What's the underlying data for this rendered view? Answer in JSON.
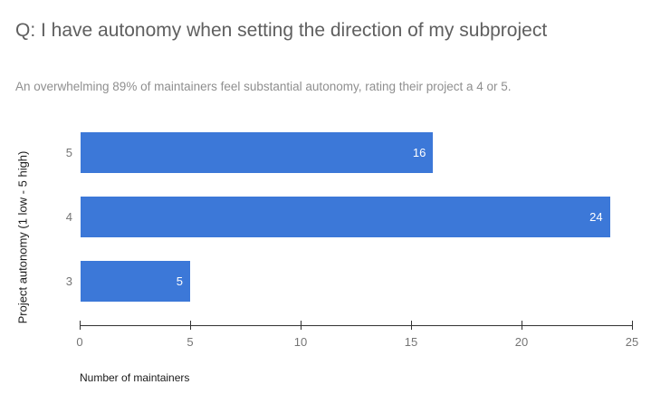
{
  "header": {
    "title": "Q: I have autonomy when setting the direction of my subproject",
    "subtitle": "An overwhelming 89% of maintainers feel substantial autonomy, rating their project a 4 or 5."
  },
  "chart_data": {
    "type": "bar",
    "orientation": "horizontal",
    "title": "Q: I have autonomy when setting the direction of my subproject",
    "subtitle": "An overwhelming 89% of maintainers feel substantial autonomy, rating their project a 4 or 5.",
    "categories": [
      "5",
      "4",
      "3"
    ],
    "values": [
      16,
      24,
      5
    ],
    "bar_labels": [
      "16",
      "24",
      "5"
    ],
    "ylabel": "Project autonomy (1 low - 5 high)",
    "xlabel": "Number of maintainers",
    "xlim": [
      0,
      25
    ],
    "xticks": [
      0,
      5,
      10,
      15,
      20,
      25
    ],
    "grid": false,
    "legend": "none",
    "colors": {
      "bar": "#3C78D8",
      "bar_value_text": "#ffffff",
      "title_text": "#5f5f5f",
      "subtitle_text": "#8f8f8f",
      "tick_text": "#757575",
      "axis_line": "#333333",
      "axis_title_text": "#1a1a1a",
      "background": "#ffffff"
    }
  }
}
